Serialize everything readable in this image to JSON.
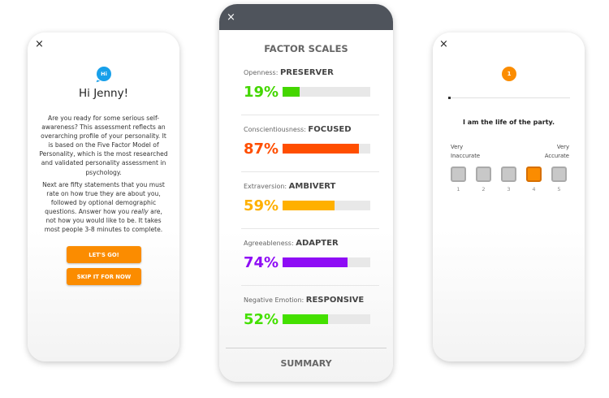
{
  "intro": {
    "close": "×",
    "badge": "Hi",
    "greeting": "Hi Jenny!",
    "para1": "Are you ready for some serious self-awareness? This assessment reflects an overarching profile of your personality. It is based on the Five Factor Model of Personality, which is the most researched and validated personality assessment in psychology.",
    "para2": "Next are fifty statements that you must rate on how true they are about you, followed by optional demographic questions. Answer how you really are, not how you would like to be. It takes most people 3-8 minutes to complete.",
    "go": "LET'S GO!",
    "skip": "SKIP IT FOR NOW",
    "accent": "#fb8c00"
  },
  "results": {
    "close": "×",
    "title": "FACTOR SCALES",
    "summary": "SUMMARY",
    "factors": [
      {
        "name": "Openness:",
        "type": "PRESERVER",
        "pct": "19%",
        "value": 19,
        "color": "#44d600"
      },
      {
        "name": "Conscientiousness:",
        "type": "FOCUSED",
        "pct": "87%",
        "value": 87,
        "color": "#ff4e00"
      },
      {
        "name": "Extraversion:",
        "type": "AMBIVERT",
        "pct": "59%",
        "value": 59,
        "color": "#ffb000"
      },
      {
        "name": "Agreeableness:",
        "type": "ADAPTER",
        "pct": "74%",
        "value": 74,
        "color": "#8e0cf5"
      },
      {
        "name": "Negative Emotion:",
        "type": "RESPONSIVE",
        "pct": "52%",
        "value": 52,
        "color": "#44e000"
      }
    ]
  },
  "question": {
    "close": "×",
    "number": "1",
    "progress": 1,
    "text": "I am the life of the party.",
    "left_anchor": "Very Inaccurate",
    "right_anchor": "Very Accurate",
    "options": [
      "1",
      "2",
      "3",
      "4",
      "5"
    ],
    "selected": "4"
  }
}
